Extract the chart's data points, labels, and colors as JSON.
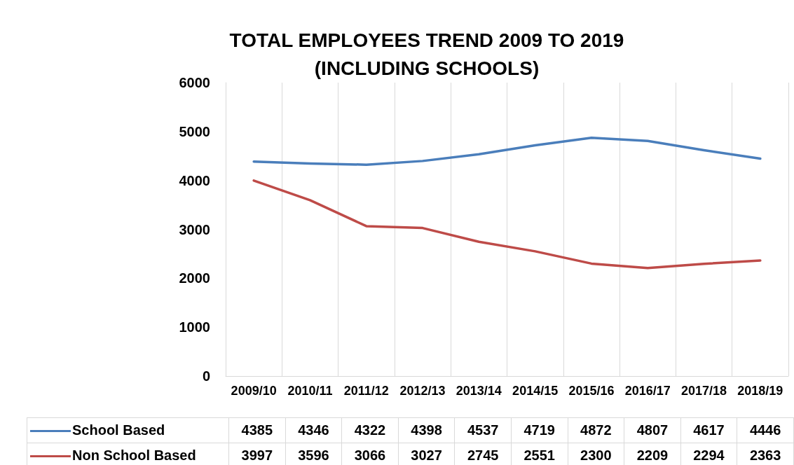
{
  "chart_data": {
    "type": "line",
    "title": "TOTAL EMPLOYEES TREND 2009 TO 2019\n(INCLUDING SCHOOLS)",
    "categories": [
      "2009/10",
      "2010/11",
      "2011/12",
      "2012/13",
      "2013/14",
      "2014/15",
      "2015/16",
      "2016/17",
      "2017/18",
      "2018/19"
    ],
    "series": [
      {
        "name": "School Based",
        "color": "#4a7ebb",
        "values": [
          4385,
          4346,
          4322,
          4398,
          4537,
          4719,
          4872,
          4807,
          4617,
          4446
        ]
      },
      {
        "name": "Non School Based",
        "color": "#be4b48",
        "values": [
          3997,
          3596,
          3066,
          3027,
          2745,
          2551,
          2300,
          2209,
          2294,
          2363
        ]
      }
    ],
    "ylim": [
      0,
      6000
    ],
    "yticks": [
      0,
      1000,
      2000,
      3000,
      4000,
      5000,
      6000
    ],
    "grid": "x",
    "legend": "bottom",
    "data_labels": true,
    "marker": "none",
    "line_style": "solid"
  }
}
